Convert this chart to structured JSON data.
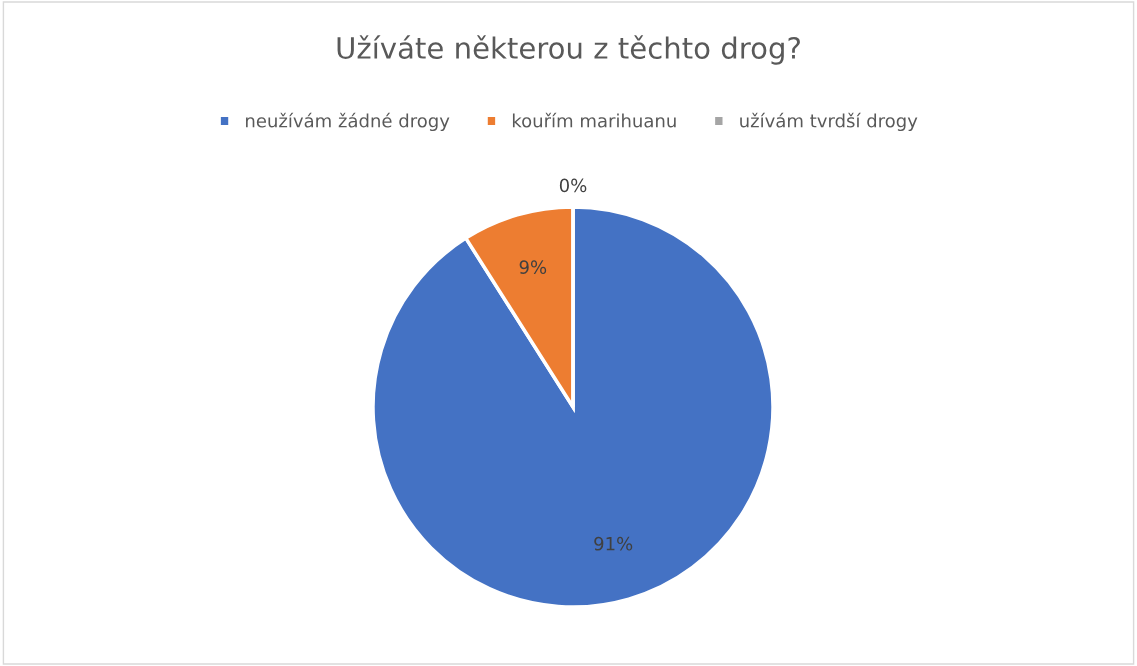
{
  "chart_data": {
    "type": "pie",
    "title": "Užíváte některou z těchto drog?",
    "categories": [
      "neužívám žádné drogy",
      "kouřím marihuanu",
      "užívám tvrdší drogy"
    ],
    "values": [
      91,
      9,
      0
    ],
    "colors": [
      "#4472c4",
      "#ed7d31",
      "#a5a5a5"
    ],
    "value_labels": [
      "91%",
      "9%",
      "0%"
    ],
    "legend": "top"
  }
}
